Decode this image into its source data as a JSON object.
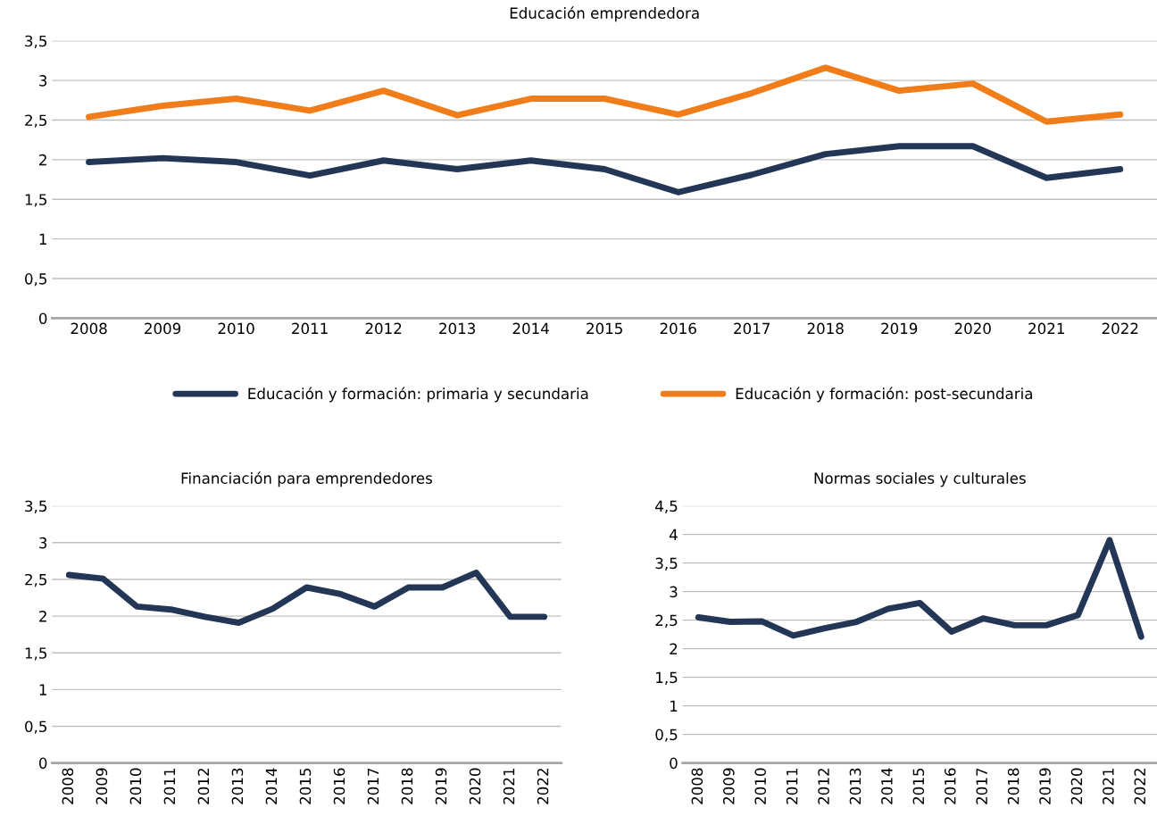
{
  "chart_data": [
    {
      "type": "line",
      "title": "Educación emprendedora",
      "categories": [
        "2008",
        "2009",
        "2010",
        "2011",
        "2012",
        "2013",
        "2014",
        "2015",
        "2016",
        "2017",
        "2018",
        "2019",
        "2020",
        "2021",
        "2022"
      ],
      "series": [
        {
          "name": "Educación y formación: primaria y secundaria",
          "color": "#243656",
          "values": [
            1.97,
            2.02,
            1.97,
            1.8,
            1.99,
            1.88,
            1.99,
            1.88,
            1.59,
            1.81,
            2.07,
            2.17,
            2.17,
            1.77,
            1.88
          ]
        },
        {
          "name": "Educación y formación: post-secundaria",
          "color": "#f07d1a",
          "values": [
            2.54,
            2.68,
            2.77,
            2.62,
            2.87,
            2.56,
            2.77,
            2.77,
            2.57,
            2.84,
            3.16,
            2.87,
            2.96,
            2.48,
            2.57
          ]
        }
      ],
      "ylim": [
        0,
        3.5
      ],
      "yticks": [
        0,
        {
          "value": 0.5,
          "label": "0,5"
        },
        1,
        {
          "value": 1.5,
          "label": "1,5"
        },
        2,
        {
          "value": 2.5,
          "label": "2,5"
        },
        3,
        {
          "value": 3.5,
          "label": "3,5"
        }
      ],
      "grid": "y",
      "legend": "bottom",
      "marker": "none",
      "line_style": "solid"
    },
    {
      "type": "line",
      "title": "Financiación para emprendedores",
      "categories": [
        "2008",
        "2009",
        "2010",
        "2011",
        "2012",
        "2013",
        "2014",
        "2015",
        "2016",
        "2017",
        "2018",
        "2019",
        "2020",
        "2021",
        "2022"
      ],
      "series": [
        {
          "color": "#243656",
          "values": [
            2.56,
            2.51,
            2.13,
            2.09,
            1.99,
            1.91,
            2.1,
            2.39,
            2.3,
            2.13,
            2.39,
            2.39,
            2.59,
            1.99,
            1.99
          ]
        }
      ],
      "ylim": [
        0,
        3.5
      ],
      "yticks": [
        0,
        {
          "value": 0.5,
          "label": "0,5"
        },
        1,
        {
          "value": 1.5,
          "label": "1,5"
        },
        2,
        {
          "value": 2.5,
          "label": "2,5"
        },
        3,
        {
          "value": 3.5,
          "label": "3,5"
        }
      ],
      "grid": "y",
      "marker": "none",
      "line_style": "solid"
    },
    {
      "type": "line",
      "title": "Normas sociales y culturales",
      "categories": [
        "2008",
        "2009",
        "2010",
        "2011",
        "2012",
        "2013",
        "2014",
        "2015",
        "2016",
        "2017",
        "2018",
        "2019",
        "2020",
        "2021",
        "2022"
      ],
      "series": [
        {
          "color": "#243656",
          "values": [
            2.55,
            2.47,
            2.48,
            2.23,
            2.36,
            2.47,
            2.7,
            2.8,
            2.3,
            2.53,
            2.41,
            2.41,
            2.59,
            3.9,
            2.21
          ]
        }
      ],
      "ylim": [
        0,
        4.5
      ],
      "yticks": [
        0,
        {
          "value": 0.5,
          "label": "0,5"
        },
        1,
        {
          "value": 1.5,
          "label": "1,5"
        },
        2,
        {
          "value": 2.5,
          "label": "2,5"
        },
        3,
        {
          "value": 3.5,
          "label": "3,5"
        },
        4,
        {
          "value": 4.5,
          "label": "4,5"
        }
      ],
      "grid": "y",
      "marker": "none",
      "line_style": "solid"
    }
  ]
}
